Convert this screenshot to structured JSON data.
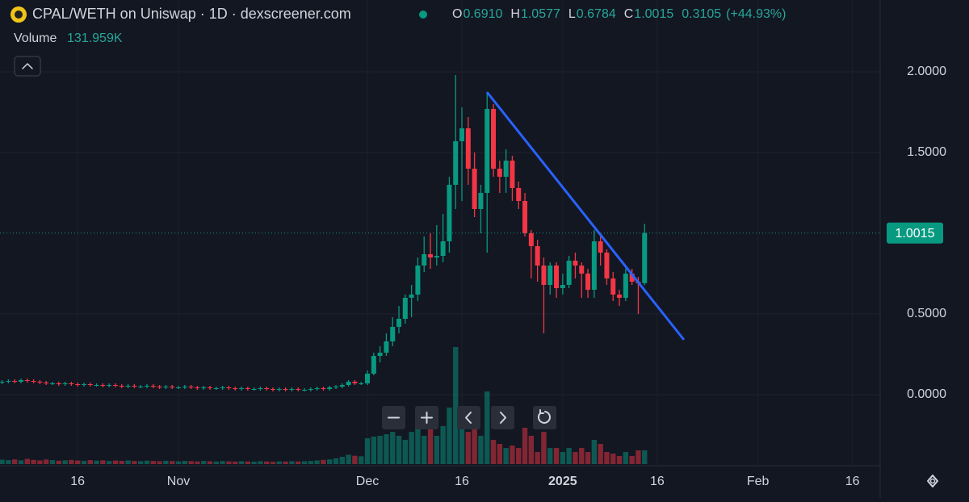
{
  "chart_data": {
    "type": "candlestick",
    "title": "CPAL/WETH on Uniswap · 1D · dexscreener.com",
    "ohlc_legend": [
      {
        "label": "O",
        "value": "0.6910"
      },
      {
        "label": "H",
        "value": "1.0577"
      },
      {
        "label": "L",
        "value": "0.6784"
      },
      {
        "label": "C",
        "value": "1.0015"
      }
    ],
    "change": "0.3105",
    "change_pct": "(+44.93%)",
    "volume_label": "Volume",
    "volume_value": "131.959K",
    "up_color": "#089981",
    "down_color": "#f23645",
    "last_price": 1.0015,
    "open": [
      0.075,
      0.08,
      0.085,
      0.08,
      0.09,
      0.085,
      0.08,
      0.075,
      0.07,
      0.07,
      0.065,
      0.07,
      0.065,
      0.06,
      0.065,
      0.06,
      0.06,
      0.055,
      0.06,
      0.055,
      0.05,
      0.055,
      0.05,
      0.05,
      0.055,
      0.05,
      0.045,
      0.05,
      0.045,
      0.045,
      0.05,
      0.045,
      0.04,
      0.045,
      0.04,
      0.04,
      0.045,
      0.04,
      0.035,
      0.04,
      0.035,
      0.035,
      0.04,
      0.035,
      0.03,
      0.035,
      0.03,
      0.035,
      0.03,
      0.03,
      0.035,
      0.04,
      0.035,
      0.045,
      0.05,
      0.06,
      0.08,
      0.07,
      0.07,
      0.13,
      0.24,
      0.26,
      0.33,
      0.42,
      0.47,
      0.6,
      0.62,
      0.8,
      0.87,
      0.85,
      0.86,
      0.95,
      1.3,
      1.57,
      1.65,
      1.4,
      1.15,
      1.25,
      1.77,
      1.4,
      1.35,
      1.45,
      1.28,
      1.2,
      1.0,
      0.92,
      0.8,
      0.68,
      0.8,
      0.66,
      0.68,
      0.83,
      0.8,
      0.75,
      0.65,
      0.95,
      0.88,
      0.72,
      0.62,
      0.6,
      0.75,
      0.7,
      0.691
    ],
    "high": [
      0.09,
      0.095,
      0.095,
      0.1,
      0.1,
      0.095,
      0.09,
      0.085,
      0.08,
      0.08,
      0.08,
      0.08,
      0.075,
      0.075,
      0.075,
      0.07,
      0.07,
      0.07,
      0.07,
      0.065,
      0.065,
      0.065,
      0.06,
      0.065,
      0.065,
      0.06,
      0.06,
      0.06,
      0.055,
      0.06,
      0.06,
      0.055,
      0.055,
      0.055,
      0.05,
      0.055,
      0.055,
      0.05,
      0.05,
      0.05,
      0.045,
      0.05,
      0.05,
      0.045,
      0.045,
      0.045,
      0.045,
      0.045,
      0.04,
      0.045,
      0.05,
      0.05,
      0.055,
      0.06,
      0.07,
      0.09,
      0.09,
      0.08,
      0.15,
      0.26,
      0.3,
      0.38,
      0.48,
      0.55,
      0.62,
      0.68,
      0.85,
      0.98,
      1.0,
      1.05,
      1.12,
      1.35,
      1.98,
      1.78,
      1.72,
      1.5,
      1.3,
      1.87,
      1.8,
      1.45,
      1.52,
      1.48,
      1.32,
      1.25,
      1.02,
      0.96,
      0.85,
      0.82,
      0.82,
      0.75,
      0.86,
      0.88,
      0.82,
      0.78,
      1.02,
      0.98,
      0.9,
      0.76,
      0.65,
      0.78,
      0.78,
      0.73,
      1.0577
    ],
    "low": [
      0.065,
      0.07,
      0.07,
      0.07,
      0.075,
      0.07,
      0.065,
      0.06,
      0.06,
      0.055,
      0.055,
      0.055,
      0.05,
      0.05,
      0.05,
      0.05,
      0.045,
      0.045,
      0.045,
      0.04,
      0.04,
      0.04,
      0.04,
      0.04,
      0.04,
      0.035,
      0.035,
      0.035,
      0.035,
      0.035,
      0.035,
      0.03,
      0.03,
      0.03,
      0.03,
      0.03,
      0.03,
      0.025,
      0.025,
      0.025,
      0.025,
      0.025,
      0.025,
      0.02,
      0.02,
      0.02,
      0.02,
      0.02,
      0.02,
      0.02,
      0.025,
      0.025,
      0.025,
      0.035,
      0.04,
      0.05,
      0.06,
      0.06,
      0.06,
      0.12,
      0.2,
      0.24,
      0.3,
      0.38,
      0.44,
      0.48,
      0.58,
      0.76,
      0.78,
      0.8,
      0.82,
      0.88,
      1.15,
      1.2,
      1.3,
      1.1,
      1.0,
      0.88,
      1.35,
      1.25,
      1.25,
      1.2,
      1.15,
      0.98,
      0.72,
      0.7,
      0.38,
      0.62,
      0.6,
      0.62,
      0.66,
      0.72,
      0.6,
      0.6,
      0.6,
      0.8,
      0.68,
      0.58,
      0.55,
      0.58,
      0.68,
      0.5,
      0.6784
    ],
    "close": [
      0.08,
      0.085,
      0.08,
      0.09,
      0.085,
      0.08,
      0.075,
      0.07,
      0.07,
      0.065,
      0.07,
      0.065,
      0.06,
      0.065,
      0.06,
      0.06,
      0.055,
      0.06,
      0.055,
      0.05,
      0.055,
      0.05,
      0.05,
      0.055,
      0.05,
      0.045,
      0.05,
      0.045,
      0.045,
      0.05,
      0.045,
      0.04,
      0.045,
      0.04,
      0.04,
      0.045,
      0.04,
      0.035,
      0.04,
      0.035,
      0.035,
      0.04,
      0.035,
      0.03,
      0.035,
      0.03,
      0.035,
      0.03,
      0.03,
      0.035,
      0.04,
      0.035,
      0.045,
      0.05,
      0.06,
      0.08,
      0.07,
      0.07,
      0.13,
      0.24,
      0.26,
      0.33,
      0.42,
      0.47,
      0.6,
      0.62,
      0.8,
      0.87,
      0.85,
      0.86,
      0.95,
      1.3,
      1.57,
      1.65,
      1.4,
      1.15,
      1.25,
      1.77,
      1.4,
      1.35,
      1.45,
      1.28,
      1.2,
      1.0,
      0.92,
      0.8,
      0.68,
      0.8,
      0.66,
      0.68,
      0.83,
      0.8,
      0.75,
      0.65,
      0.95,
      0.88,
      0.72,
      0.62,
      0.6,
      0.75,
      0.7,
      0.69,
      1.0015
    ],
    "volume": [
      42000,
      38000,
      45000,
      36000,
      50000,
      40000,
      35000,
      44000,
      38000,
      32000,
      36000,
      40000,
      34000,
      30000,
      38000,
      33000,
      36000,
      30000,
      34000,
      31000,
      35000,
      30000,
      28000,
      33000,
      30000,
      27000,
      32000,
      29000,
      26000,
      31000,
      28000,
      25000,
      30000,
      27000,
      24000,
      29000,
      26000,
      24000,
      28000,
      25000,
      23000,
      27000,
      25000,
      22000,
      26000,
      24000,
      28000,
      25000,
      27000,
      30000,
      35000,
      40000,
      45000,
      55000,
      70000,
      90000,
      80000,
      75000,
      248000,
      264000,
      272000,
      287000,
      310000,
      272000,
      233000,
      310000,
      427000,
      272000,
      388000,
      272000,
      365000,
      543000,
      1125000,
      427000,
      310000,
      388000,
      272000,
      698000,
      233000,
      194000,
      155000,
      178000,
      155000,
      349000,
      272000,
      116000,
      310000,
      155000,
      155000,
      116000,
      155000,
      116000,
      155000,
      116000,
      233000,
      194000,
      116000,
      101000,
      78000,
      116000,
      78000,
      132000,
      131959
    ],
    "volume_lim": [
      0,
      1125000
    ],
    "xlim": [
      -0.33,
      139.4
    ],
    "ylim": [
      -0.44,
      2.445
    ],
    "xticks": [
      {
        "value": 12,
        "label": "16"
      },
      {
        "value": 28,
        "label": "Nov"
      },
      {
        "value": 58,
        "label": "Dec"
      },
      {
        "value": 73,
        "label": "16"
      },
      {
        "value": 89,
        "label": "2025"
      },
      {
        "value": 104,
        "label": "16"
      },
      {
        "value": 120,
        "label": "Feb"
      },
      {
        "value": 135,
        "label": "16"
      }
    ],
    "yticks": [
      {
        "value": 2,
        "label": "2.0000"
      },
      {
        "value": 1.5,
        "label": "1.5000"
      },
      {
        "value": 0.5,
        "label": "0.5000"
      },
      {
        "value": 0,
        "label": "0.0000"
      }
    ],
    "grid": true
  }
}
